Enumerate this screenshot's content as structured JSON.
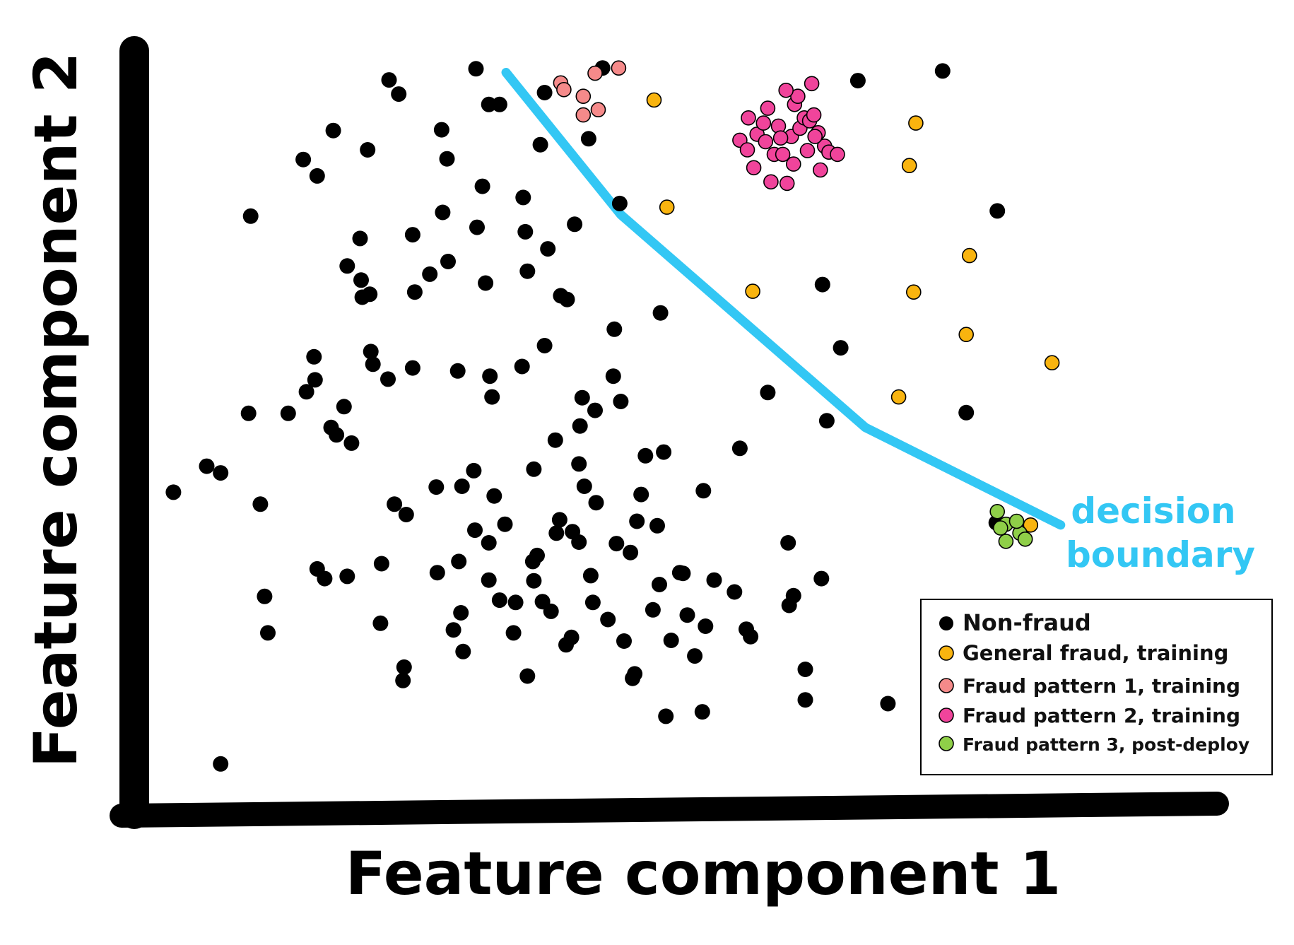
{
  "chart_data": {
    "type": "scatter",
    "xlabel": "Feature component 1",
    "ylabel": "Feature component 2",
    "xlim": [
      0,
      100
    ],
    "ylim": [
      0,
      100
    ],
    "grid": false,
    "legend_position": "bottom-right",
    "annotation": {
      "text_lines": [
        "decision",
        "boundary"
      ],
      "color": "#33c7f4"
    },
    "decision_boundary": {
      "color": "#33c7f4",
      "points": [
        [
          33.2,
          97.1
        ],
        [
          43.9,
          78.0
        ],
        [
          66.7,
          49.4
        ],
        [
          84.9,
          36.3
        ]
      ]
    },
    "series": [
      {
        "name": "Non-fraud",
        "color": "#000000",
        "points": [
          [
            2.2,
            40.7
          ],
          [
            5.3,
            44.2
          ],
          [
            6.6,
            43.3
          ],
          [
            6.6,
            4.2
          ],
          [
            9.4,
            77.8
          ],
          [
            9.2,
            51.3
          ],
          [
            10.3,
            39.1
          ],
          [
            10.7,
            26.7
          ],
          [
            11,
            21.8
          ],
          [
            12.9,
            51.3
          ],
          [
            14.3,
            85.4
          ],
          [
            15.6,
            83.2
          ],
          [
            14.6,
            54.2
          ],
          [
            15.3,
            58.9
          ],
          [
            15.4,
            55.8
          ],
          [
            15.6,
            30.4
          ],
          [
            16.3,
            29.1
          ],
          [
            16.9,
            49.4
          ],
          [
            17.1,
            89.3
          ],
          [
            17.4,
            48.4
          ],
          [
            18.1,
            52.2
          ],
          [
            18.4,
            29.4
          ],
          [
            18.4,
            71.1
          ],
          [
            18.8,
            47.3
          ],
          [
            19.6,
            74.8
          ],
          [
            19.7,
            69.2
          ],
          [
            20.3,
            86.7
          ],
          [
            20.5,
            67.3
          ],
          [
            19.8,
            66.9
          ],
          [
            20.6,
            59.6
          ],
          [
            20.8,
            57.9
          ],
          [
            21.5,
            23.1
          ],
          [
            21.6,
            31.1
          ],
          [
            22.2,
            55.9
          ],
          [
            22.3,
            96.1
          ],
          [
            22.8,
            39.1
          ],
          [
            23.2,
            94.2
          ],
          [
            23.6,
            15.4
          ],
          [
            23.7,
            17.2
          ],
          [
            23.9,
            37.7
          ],
          [
            24.7,
            67.6
          ],
          [
            24.5,
            57.4
          ],
          [
            24.5,
            75.3
          ],
          [
            26.1,
            70.0
          ],
          [
            26.8,
            29.9
          ],
          [
            26.7,
            41.4
          ],
          [
            27.2,
            89.4
          ],
          [
            27.7,
            85.5
          ],
          [
            27.3,
            78.3
          ],
          [
            27.8,
            71.7
          ],
          [
            28.7,
            57.0
          ],
          [
            29.1,
            41.5
          ],
          [
            28.8,
            31.4
          ],
          [
            29.0,
            24.5
          ],
          [
            28.3,
            22.2
          ],
          [
            29.2,
            19.3
          ],
          [
            30.4,
            97.6
          ],
          [
            30.2,
            43.6
          ],
          [
            30.3,
            35.6
          ],
          [
            30.5,
            76.3
          ],
          [
            31.0,
            81.8
          ],
          [
            31.6,
            92.8
          ],
          [
            31.3,
            68.8
          ],
          [
            31.7,
            56.3
          ],
          [
            31.6,
            33.9
          ],
          [
            31.6,
            28.9
          ],
          [
            32.6,
            92.8
          ],
          [
            31.9,
            53.5
          ],
          [
            32.1,
            40.2
          ],
          [
            32.6,
            26.2
          ],
          [
            33.1,
            36.4
          ],
          [
            33.9,
            21.8
          ],
          [
            34.1,
            25.9
          ],
          [
            34.7,
            57.6
          ],
          [
            34.8,
            80.3
          ],
          [
            35.0,
            75.7
          ],
          [
            35.2,
            70.4
          ],
          [
            35.2,
            16.0
          ],
          [
            35.7,
            31.4
          ],
          [
            35.8,
            28.8
          ],
          [
            35.8,
            43.8
          ],
          [
            36.1,
            32.2
          ],
          [
            36.4,
            87.4
          ],
          [
            36.8,
            60.4
          ],
          [
            36.6,
            26.0
          ],
          [
            36.8,
            94.4
          ],
          [
            37.1,
            73.4
          ],
          [
            37.4,
            24.7
          ],
          [
            37.9,
            35.2
          ],
          [
            38.2,
            37.0
          ],
          [
            38.3,
            67.1
          ],
          [
            37.8,
            47.7
          ],
          [
            38.9,
            66.6
          ],
          [
            38.8,
            20.2
          ],
          [
            39.4,
            35.4
          ],
          [
            39.3,
            21.2
          ],
          [
            39.6,
            76.7
          ],
          [
            40.0,
            34.0
          ],
          [
            40.0,
            44.5
          ],
          [
            40.1,
            49.6
          ],
          [
            40.3,
            53.4
          ],
          [
            40.5,
            41.5
          ],
          [
            40.9,
            88.2
          ],
          [
            41.1,
            29.5
          ],
          [
            41.3,
            25.9
          ],
          [
            41.5,
            51.7
          ],
          [
            41.6,
            39.3
          ],
          [
            42.2,
            97.7
          ],
          [
            42.7,
            23.6
          ],
          [
            43.3,
            62.6
          ],
          [
            43.2,
            56.3
          ],
          [
            43.5,
            33.8
          ],
          [
            43.8,
            79.5
          ],
          [
            43.9,
            52.9
          ],
          [
            44.2,
            20.7
          ],
          [
            44.8,
            32.6
          ],
          [
            45.0,
            15.7
          ],
          [
            45.2,
            16.3
          ],
          [
            45.4,
            36.8
          ],
          [
            45.8,
            40.4
          ],
          [
            46.2,
            45.6
          ],
          [
            46.9,
            24.9
          ],
          [
            47.5,
            28.3
          ],
          [
            47.3,
            36.2
          ],
          [
            47.6,
            64.8
          ],
          [
            47.9,
            46.1
          ],
          [
            48.1,
            10.6
          ],
          [
            48.6,
            20.8
          ],
          [
            49.4,
            29.9
          ],
          [
            49.7,
            29.8
          ],
          [
            50.1,
            24.2
          ],
          [
            50.8,
            18.7
          ],
          [
            51.5,
            11.2
          ],
          [
            51.6,
            40.9
          ],
          [
            51.8,
            22.7
          ],
          [
            52.6,
            28.9
          ],
          [
            54.5,
            27.3
          ],
          [
            55.6,
            22.3
          ],
          [
            56.0,
            21.3
          ],
          [
            55.0,
            46.6
          ],
          [
            57.6,
            54.1
          ],
          [
            59.5,
            33.9
          ],
          [
            59.6,
            25.5
          ],
          [
            60.0,
            26.8
          ],
          [
            61.1,
            12.8
          ],
          [
            61.1,
            16.9
          ],
          [
            62.6,
            29.1
          ],
          [
            62.7,
            68.6
          ],
          [
            63.1,
            50.3
          ],
          [
            64.4,
            60.1
          ],
          [
            66.0,
            96.0
          ],
          [
            68.8,
            12.3
          ],
          [
            73.9,
            97.3
          ],
          [
            79.0,
            78.5
          ],
          [
            76.1,
            51.4
          ],
          [
            78.9,
            36.6
          ]
        ]
      },
      {
        "name": "General fraud, training",
        "color": "#f9b40f",
        "points": [
          [
            47.0,
            93.4
          ],
          [
            48.2,
            79.0
          ],
          [
            56.2,
            67.7
          ],
          [
            71.4,
            90.3
          ],
          [
            70.8,
            84.6
          ],
          [
            71.2,
            67.6
          ],
          [
            76.4,
            72.5
          ],
          [
            76.1,
            61.9
          ],
          [
            69.8,
            53.5
          ],
          [
            84.1,
            58.1
          ],
          [
            82.1,
            36.3
          ]
        ]
      },
      {
        "name": "Fraud pattern 1, training",
        "color": "#f58a8a",
        "points": [
          [
            38.3,
            95.7
          ],
          [
            40.4,
            93.9
          ],
          [
            41.5,
            97.0
          ],
          [
            43.7,
            97.7
          ],
          [
            38.6,
            94.8
          ],
          [
            40.4,
            91.4
          ],
          [
            41.8,
            92.1
          ]
        ]
      },
      {
        "name": "Fraud pattern 2, training",
        "color": "#f0449b",
        "points": [
          [
            55.0,
            88.0
          ],
          [
            56.3,
            84.3
          ],
          [
            55.8,
            91.0
          ],
          [
            56.6,
            88.8
          ],
          [
            57.2,
            90.3
          ],
          [
            57.6,
            92.3
          ],
          [
            57.4,
            87.8
          ],
          [
            58.2,
            86.1
          ],
          [
            57.9,
            82.4
          ],
          [
            58.6,
            89.9
          ],
          [
            59.0,
            86.1
          ],
          [
            59.4,
            82.2
          ],
          [
            59.8,
            88.5
          ],
          [
            60.1,
            92.8
          ],
          [
            60.6,
            89.6
          ],
          [
            61.0,
            91.0
          ],
          [
            61.5,
            90.6
          ],
          [
            61.9,
            91.4
          ],
          [
            62.3,
            89.0
          ],
          [
            62.5,
            84.0
          ],
          [
            62.9,
            87.2
          ],
          [
            63.3,
            86.4
          ],
          [
            64.1,
            86.1
          ],
          [
            61.3,
            86.6
          ],
          [
            60.0,
            84.8
          ],
          [
            62.0,
            88.5
          ],
          [
            58.8,
            88.3
          ],
          [
            60.4,
            93.9
          ],
          [
            61.7,
            95.6
          ],
          [
            59.3,
            94.7
          ],
          [
            55.7,
            86.7
          ]
        ]
      },
      {
        "name": "Fraud pattern 3, post-deploy",
        "color": "#8fcf48",
        "points": [
          [
            79.0,
            38.1
          ],
          [
            79.8,
            36.4
          ],
          [
            79.8,
            34.1
          ],
          [
            81.1,
            35.2
          ],
          [
            80.8,
            36.8
          ],
          [
            81.6,
            34.4
          ],
          [
            79.3,
            35.9
          ]
        ]
      }
    ]
  }
}
